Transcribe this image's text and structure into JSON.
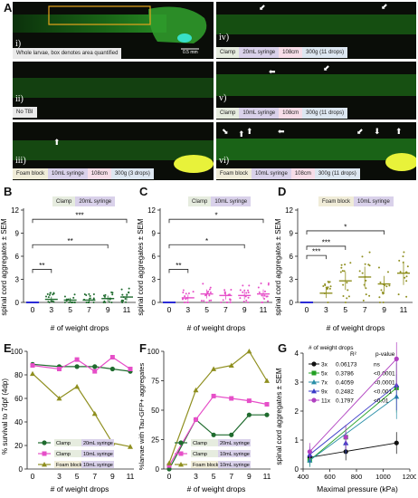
{
  "panels": {
    "A": {
      "letter": "A"
    },
    "B": {
      "letter": "B"
    },
    "C": {
      "letter": "C"
    },
    "D": {
      "letter": "D"
    },
    "E": {
      "letter": "E"
    },
    "F": {
      "letter": "F"
    },
    "G": {
      "letter": "G"
    }
  },
  "micrographs": [
    {
      "roman": "i)",
      "caption": "Whole larvae, box denotes area quantified",
      "scale": "0.5 mm"
    },
    {
      "roman": "ii)",
      "tags": [
        "No TBI"
      ]
    },
    {
      "roman": "iii)",
      "tags": [
        "Foam block",
        "10mL syringe",
        "108cm",
        "300g (3 drops)"
      ]
    },
    {
      "roman": "iv)",
      "tags": [
        "Clamp",
        "20mL syringe",
        "108cm",
        "300g (11 drops)"
      ]
    },
    {
      "roman": "v)",
      "tags": [
        "Clamp",
        "10mL syringe",
        "108cm",
        "300g (11 drops)"
      ]
    },
    {
      "roman": "vi)",
      "tags": [
        "Foam block",
        "10mL syringe",
        "108cm",
        "300g (11 drops)"
      ]
    }
  ],
  "bcd": {
    "ylabel": "spinal cord aggregates ± SEM",
    "xlabel": "# of weight drops",
    "categories": [
      "0",
      "3",
      "5",
      "7",
      "9",
      "11"
    ],
    "yticks": [
      "0",
      "3",
      "6",
      "9",
      "12"
    ],
    "B": {
      "tags": [
        "Clamp",
        "20mL syringe"
      ],
      "sig": [
        "**",
        "**",
        "***"
      ]
    },
    "C": {
      "tags": [
        "Clamp",
        "10mL syringe"
      ],
      "sig": [
        "**",
        "*",
        "*"
      ]
    },
    "D": {
      "tags": [
        "Foam block",
        "10mL syringe"
      ],
      "sig": [
        "***",
        "***",
        "*"
      ]
    }
  },
  "E": {
    "ylabel": "% survival to 7dpf (4dp)",
    "xlabel": "# of weight drops",
    "yticks": [
      "0",
      "20",
      "40",
      "60",
      "80",
      "100"
    ]
  },
  "F": {
    "ylabel": "%larvae with Tau-GFP+ aggregates",
    "xlabel": "# of weight drops",
    "yticks": [
      "0",
      "25",
      "50",
      "75",
      "100"
    ]
  },
  "G": {
    "ylabel": "spinal cord aggregates ± SEM",
    "xlabel": "Maximal pressure (kPa)",
    "xticks": [
      "400",
      "600",
      "800",
      "1000",
      "1200"
    ],
    "yticks": [
      "0",
      "1",
      "2",
      "3",
      "4"
    ],
    "legend_title": "# of weight drops",
    "col_r2": "R²",
    "col_p": "p-value"
  },
  "legend_EF": [
    {
      "name": "Clamp",
      "tags": [
        "Clamp",
        "20mL syringe"
      ]
    },
    {
      "name": "Clamp",
      "tags": [
        "Clamp",
        "10mL syringe"
      ]
    },
    {
      "name": "Foam block",
      "tags": [
        "Foam block",
        "10mL syringe"
      ]
    }
  ],
  "colors": {
    "green": "#1f6b2e",
    "pink": "#e64fc8",
    "olive": "#8f8f1f",
    "blue": "#2b2bd6"
  },
  "chart_data": [
    {
      "type": "scatter",
      "panel": "B",
      "categories": [
        "0",
        "3",
        "5",
        "7",
        "9",
        "11"
      ],
      "means": [
        0.0,
        0.4,
        0.3,
        0.3,
        0.5,
        0.7
      ],
      "ylim": [
        0,
        12
      ],
      "xlabel": "# of weight drops",
      "ylabel": "spinal cord aggregates ± SEM"
    },
    {
      "type": "scatter",
      "panel": "C",
      "categories": [
        "0",
        "3",
        "5",
        "7",
        "9",
        "11"
      ],
      "means": [
        0.0,
        0.6,
        1.1,
        0.9,
        0.9,
        1.1
      ],
      "ylim": [
        0,
        12
      ],
      "xlabel": "# of weight drops",
      "ylabel": "spinal cord aggregates ± SEM"
    },
    {
      "type": "scatter",
      "panel": "D",
      "categories": [
        "0",
        "3",
        "5",
        "7",
        "9",
        "11"
      ],
      "means": [
        0.0,
        1.2,
        2.8,
        3.3,
        2.4,
        3.8
      ],
      "ylim": [
        0,
        12
      ],
      "xlabel": "# of weight drops",
      "ylabel": "spinal cord aggregates ± SEM"
    },
    {
      "type": "line",
      "panel": "E",
      "x": [
        0,
        3,
        5,
        7,
        9,
        11
      ],
      "series": [
        {
          "name": "Clamp 20mL syringe",
          "values": [
            89,
            87,
            87,
            87,
            85,
            83
          ]
        },
        {
          "name": "Clamp 10mL syringe",
          "values": [
            88,
            85,
            93,
            83,
            95,
            85
          ]
        },
        {
          "name": "Foam block 10mL syringe",
          "values": [
            81,
            60,
            70,
            47,
            22,
            19
          ]
        }
      ],
      "ylim": [
        0,
        100
      ],
      "xlabel": "# of weight drops",
      "ylabel": "% survival to 7dpf (4dp)"
    },
    {
      "type": "line",
      "panel": "F",
      "x": [
        0,
        3,
        5,
        7,
        9,
        11
      ],
      "series": [
        {
          "name": "Clamp 20mL syringe",
          "values": [
            0,
            42,
            29,
            29,
            46,
            46
          ]
        },
        {
          "name": "Clamp 10mL syringe",
          "values": [
            3,
            42,
            62,
            60,
            58,
            55
          ]
        },
        {
          "name": "Foam block 10mL syringe",
          "values": [
            5,
            67,
            85,
            88,
            100,
            75
          ]
        }
      ],
      "ylim": [
        0,
        100
      ],
      "xlabel": "# of weight drops",
      "ylabel": "%larvae with Tau-GFP+ aggregates"
    },
    {
      "type": "line",
      "panel": "G",
      "x": [
        450,
        720,
        1100
      ],
      "series": [
        {
          "name": "3x",
          "r2": "0.06173",
          "p": "ns",
          "values": [
            0.4,
            0.6,
            0.9
          ]
        },
        {
          "name": "5x",
          "r2": "0.3786",
          "p": "<0.0001",
          "values": [
            0.3,
            1.1,
            2.8
          ]
        },
        {
          "name": "7x",
          "r2": "0.4059",
          "p": "<0.0001",
          "values": [
            0.3,
            0.9,
            2.5
          ]
        },
        {
          "name": "9x",
          "r2": "0.2482",
          "p": "<0.001",
          "values": [
            0.5,
            0.9,
            2.9
          ]
        },
        {
          "name": "11x",
          "r2": "0.1797",
          "p": "<0.01",
          "values": [
            0.6,
            1.1,
            3.8
          ]
        }
      ],
      "xlim": [
        400,
        1200
      ],
      "ylim": [
        0,
        4
      ],
      "xlabel": "Maximal pressure (kPa)",
      "ylabel": "spinal cord aggregates ± SEM"
    }
  ]
}
